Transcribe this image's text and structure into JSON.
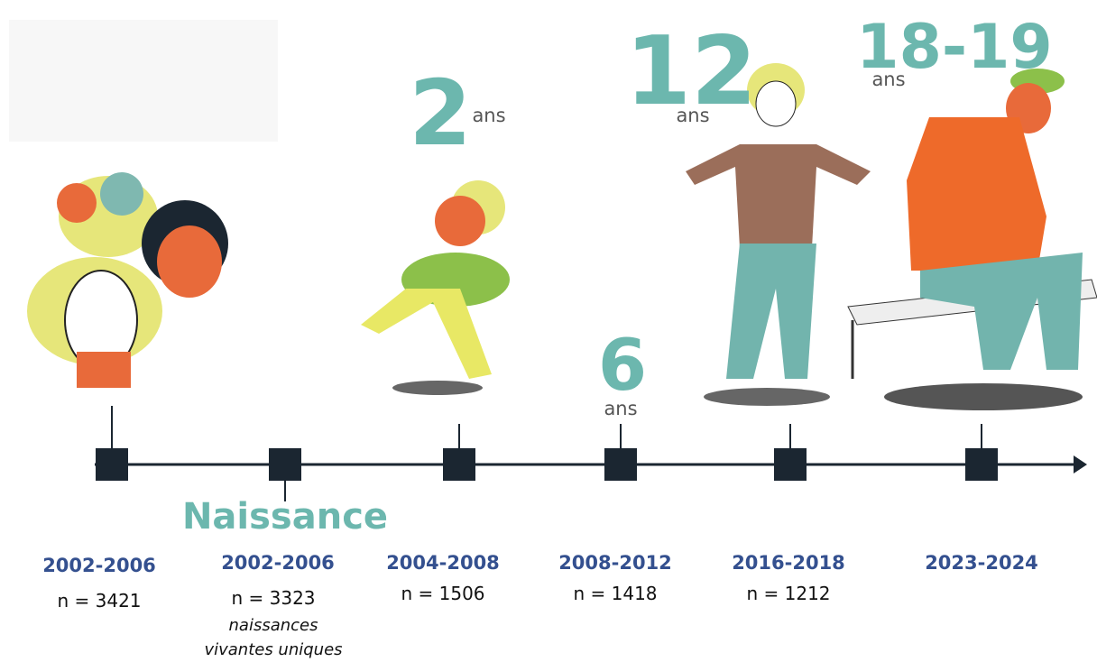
{
  "milestones": [
    {
      "period": "2002-2006",
      "n": "n = 3421"
    },
    {
      "label": "Naissance",
      "period": "2002-2006",
      "n": "n = 3323",
      "note": [
        "naissances",
        "vivantes uniques"
      ]
    },
    {
      "age": "2",
      "unit": "ans",
      "period": "2004-2008",
      "n": "n = 1506"
    },
    {
      "age": "6",
      "unit": "ans",
      "period": "2008-2012",
      "n": "n = 1418"
    },
    {
      "age": "12",
      "unit": "ans",
      "period": "2016-2018",
      "n": "n = 1212"
    },
    {
      "age": "18-19",
      "unit": "ans",
      "period": "2023-2024"
    }
  ]
}
